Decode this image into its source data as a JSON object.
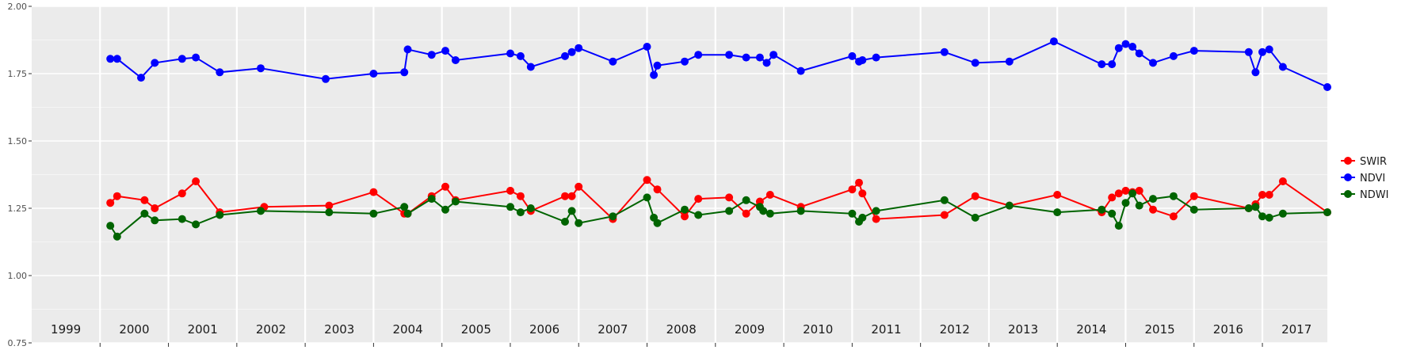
{
  "chart_data": {
    "type": "line",
    "title": "",
    "xlabel": "",
    "ylabel": "",
    "ylim": [
      0.75,
      2.0
    ],
    "xlim": [
      1999.0,
      2017.95
    ],
    "y_ticks": [
      "0.75",
      "1.00",
      "1.25",
      "1.50",
      "1.75",
      "2.00"
    ],
    "year_labels": [
      "1999",
      "2000",
      "2001",
      "2002",
      "2003",
      "2004",
      "2005",
      "2006",
      "2007",
      "2008",
      "2009",
      "2010",
      "2011",
      "2012",
      "2013",
      "2014",
      "2015",
      "2016",
      "2017"
    ],
    "grid": true,
    "legend_position": "right",
    "series": [
      {
        "name": "SWIR",
        "color": "#ff0000",
        "points": [
          [
            2000.15,
            1.27
          ],
          [
            2000.25,
            1.295
          ],
          [
            2000.65,
            1.28
          ],
          [
            2000.8,
            1.25
          ],
          [
            2001.2,
            1.305
          ],
          [
            2001.4,
            1.35
          ],
          [
            2001.75,
            1.235
          ],
          [
            2002.4,
            1.255
          ],
          [
            2003.35,
            1.26
          ],
          [
            2004.0,
            1.31
          ],
          [
            2004.45,
            1.23
          ],
          [
            2004.5,
            1.23
          ],
          [
            2004.85,
            1.295
          ],
          [
            2005.05,
            1.33
          ],
          [
            2005.2,
            1.28
          ],
          [
            2006.0,
            1.315
          ],
          [
            2006.15,
            1.295
          ],
          [
            2006.3,
            1.24
          ],
          [
            2006.8,
            1.295
          ],
          [
            2006.9,
            1.295
          ],
          [
            2007.0,
            1.33
          ],
          [
            2007.5,
            1.21
          ],
          [
            2008.0,
            1.355
          ],
          [
            2008.15,
            1.32
          ],
          [
            2008.55,
            1.22
          ],
          [
            2008.75,
            1.285
          ],
          [
            2009.2,
            1.29
          ],
          [
            2009.45,
            1.23
          ],
          [
            2009.65,
            1.275
          ],
          [
            2009.8,
            1.3
          ],
          [
            2010.25,
            1.255
          ],
          [
            2011.0,
            1.32
          ],
          [
            2011.1,
            1.345
          ],
          [
            2011.15,
            1.305
          ],
          [
            2011.35,
            1.21
          ],
          [
            2012.35,
            1.225
          ],
          [
            2012.8,
            1.295
          ],
          [
            2013.3,
            1.26
          ],
          [
            2014.0,
            1.3
          ],
          [
            2014.65,
            1.235
          ],
          [
            2014.8,
            1.29
          ],
          [
            2014.9,
            1.305
          ],
          [
            2015.0,
            1.315
          ],
          [
            2015.1,
            1.31
          ],
          [
            2015.2,
            1.315
          ],
          [
            2015.4,
            1.245
          ],
          [
            2015.7,
            1.22
          ],
          [
            2016.0,
            1.295
          ],
          [
            2016.8,
            1.25
          ],
          [
            2016.9,
            1.265
          ],
          [
            2017.0,
            1.3
          ],
          [
            2017.1,
            1.3
          ],
          [
            2017.3,
            1.35
          ],
          [
            2017.95,
            1.235
          ]
        ]
      },
      {
        "name": "NDVI",
        "color": "#0000ff",
        "points": [
          [
            2000.15,
            1.805
          ],
          [
            2000.25,
            1.805
          ],
          [
            2000.6,
            1.735
          ],
          [
            2000.8,
            1.79
          ],
          [
            2001.2,
            1.805
          ],
          [
            2001.4,
            1.81
          ],
          [
            2001.75,
            1.755
          ],
          [
            2002.35,
            1.77
          ],
          [
            2003.3,
            1.73
          ],
          [
            2004.0,
            1.75
          ],
          [
            2004.45,
            1.755
          ],
          [
            2004.5,
            1.84
          ],
          [
            2004.85,
            1.82
          ],
          [
            2005.05,
            1.835
          ],
          [
            2005.2,
            1.8
          ],
          [
            2006.0,
            1.825
          ],
          [
            2006.15,
            1.815
          ],
          [
            2006.3,
            1.775
          ],
          [
            2006.8,
            1.815
          ],
          [
            2006.9,
            1.83
          ],
          [
            2007.0,
            1.845
          ],
          [
            2007.5,
            1.795
          ],
          [
            2008.0,
            1.85
          ],
          [
            2008.1,
            1.745
          ],
          [
            2008.15,
            1.78
          ],
          [
            2008.55,
            1.795
          ],
          [
            2008.75,
            1.82
          ],
          [
            2009.2,
            1.82
          ],
          [
            2009.45,
            1.81
          ],
          [
            2009.65,
            1.81
          ],
          [
            2009.75,
            1.79
          ],
          [
            2009.85,
            1.82
          ],
          [
            2010.25,
            1.76
          ],
          [
            2011.0,
            1.815
          ],
          [
            2011.1,
            1.795
          ],
          [
            2011.15,
            1.8
          ],
          [
            2011.35,
            1.81
          ],
          [
            2012.35,
            1.83
          ],
          [
            2012.8,
            1.79
          ],
          [
            2013.3,
            1.795
          ],
          [
            2013.95,
            1.87
          ],
          [
            2014.65,
            1.785
          ],
          [
            2014.8,
            1.785
          ],
          [
            2014.9,
            1.845
          ],
          [
            2015.0,
            1.86
          ],
          [
            2015.1,
            1.85
          ],
          [
            2015.2,
            1.825
          ],
          [
            2015.4,
            1.79
          ],
          [
            2015.7,
            1.815
          ],
          [
            2016.0,
            1.835
          ],
          [
            2016.8,
            1.83
          ],
          [
            2016.9,
            1.755
          ],
          [
            2017.0,
            1.83
          ],
          [
            2017.1,
            1.84
          ],
          [
            2017.3,
            1.775
          ],
          [
            2017.95,
            1.7
          ]
        ]
      },
      {
        "name": "NDWI",
        "color": "#006400",
        "points": [
          [
            2000.15,
            1.185
          ],
          [
            2000.25,
            1.145
          ],
          [
            2000.65,
            1.23
          ],
          [
            2000.8,
            1.205
          ],
          [
            2001.2,
            1.21
          ],
          [
            2001.4,
            1.19
          ],
          [
            2001.75,
            1.225
          ],
          [
            2002.35,
            1.24
          ],
          [
            2003.35,
            1.235
          ],
          [
            2004.0,
            1.23
          ],
          [
            2004.45,
            1.255
          ],
          [
            2004.5,
            1.23
          ],
          [
            2004.85,
            1.285
          ],
          [
            2005.05,
            1.245
          ],
          [
            2005.2,
            1.275
          ],
          [
            2006.0,
            1.255
          ],
          [
            2006.15,
            1.235
          ],
          [
            2006.3,
            1.25
          ],
          [
            2006.8,
            1.2
          ],
          [
            2006.9,
            1.24
          ],
          [
            2007.0,
            1.195
          ],
          [
            2007.5,
            1.22
          ],
          [
            2008.0,
            1.29
          ],
          [
            2008.1,
            1.215
          ],
          [
            2008.15,
            1.195
          ],
          [
            2008.55,
            1.245
          ],
          [
            2008.75,
            1.225
          ],
          [
            2009.2,
            1.24
          ],
          [
            2009.45,
            1.28
          ],
          [
            2009.65,
            1.255
          ],
          [
            2009.7,
            1.24
          ],
          [
            2009.8,
            1.23
          ],
          [
            2010.25,
            1.24
          ],
          [
            2011.0,
            1.23
          ],
          [
            2011.1,
            1.2
          ],
          [
            2011.15,
            1.215
          ],
          [
            2011.35,
            1.24
          ],
          [
            2012.35,
            1.28
          ],
          [
            2012.8,
            1.215
          ],
          [
            2013.3,
            1.26
          ],
          [
            2014.0,
            1.235
          ],
          [
            2014.65,
            1.245
          ],
          [
            2014.8,
            1.23
          ],
          [
            2014.9,
            1.185
          ],
          [
            2015.0,
            1.27
          ],
          [
            2015.1,
            1.305
          ],
          [
            2015.2,
            1.26
          ],
          [
            2015.4,
            1.285
          ],
          [
            2015.7,
            1.295
          ],
          [
            2016.0,
            1.245
          ],
          [
            2016.8,
            1.25
          ],
          [
            2016.9,
            1.255
          ],
          [
            2017.0,
            1.22
          ],
          [
            2017.1,
            1.215
          ],
          [
            2017.3,
            1.23
          ],
          [
            2017.95,
            1.235
          ]
        ]
      }
    ]
  }
}
